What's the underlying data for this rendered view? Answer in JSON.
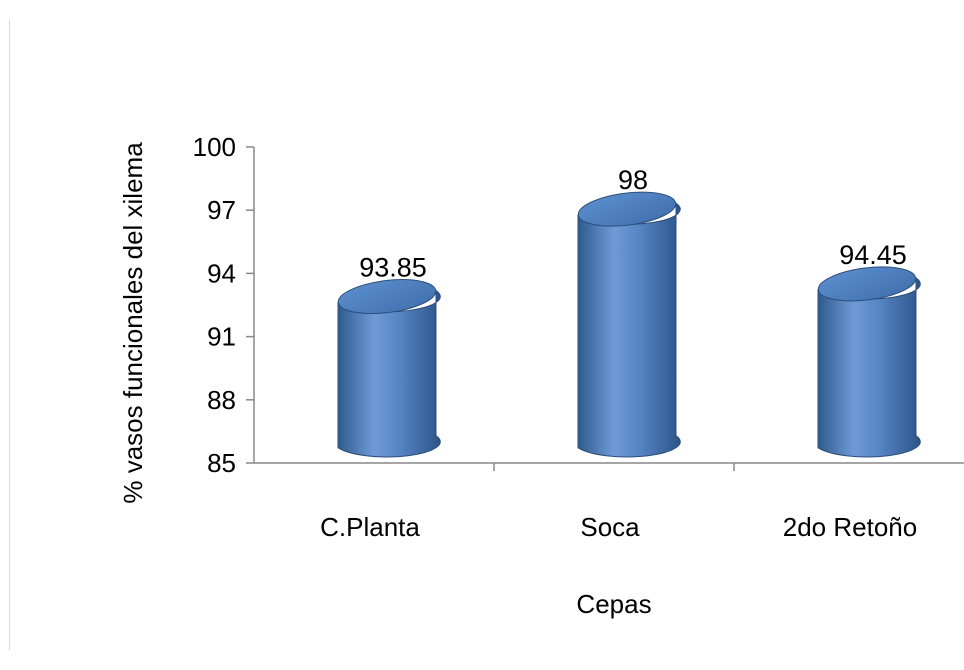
{
  "chart_data": {
    "type": "bar",
    "style": "3d-cylinder",
    "categories": [
      "C.Planta",
      "Soca",
      "2do Retoño"
    ],
    "values": [
      93.85,
      98,
      94.45
    ],
    "data_labels": [
      "93.85",
      "98",
      "94.45"
    ],
    "xlabel": "Cepas",
    "ylabel": "% vasos funcionales del xilema",
    "ylim": [
      85,
      100
    ],
    "yticks": [
      85,
      88,
      91,
      94,
      97,
      100
    ],
    "grid": false,
    "legend": "none",
    "colors": {
      "bar": "#4f81bd",
      "bar_light": "#7aa5dc",
      "bar_dark": "#2f5a8e",
      "axis": "#888888"
    }
  }
}
